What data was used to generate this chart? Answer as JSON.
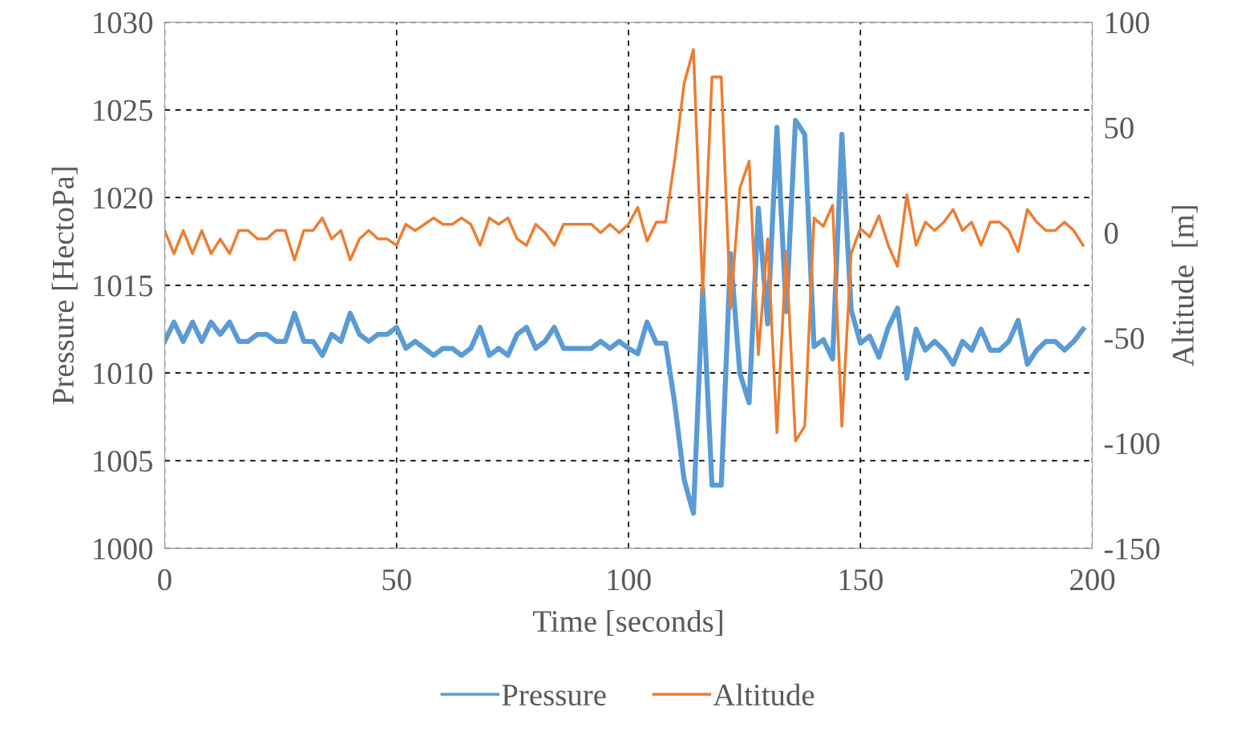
{
  "chart_data": {
    "type": "line",
    "xlabel": "Time [seconds]",
    "ylabel": "Pressure [HectoPa]",
    "y2label": "Altitude  [m]",
    "x": [
      0,
      2,
      4,
      6,
      8,
      10,
      12,
      14,
      16,
      18,
      20,
      22,
      24,
      26,
      28,
      30,
      32,
      34,
      36,
      38,
      40,
      42,
      44,
      46,
      48,
      50,
      52,
      54,
      56,
      58,
      60,
      62,
      64,
      66,
      68,
      70,
      72,
      74,
      76,
      78,
      80,
      82,
      84,
      86,
      88,
      90,
      92,
      94,
      96,
      98,
      100,
      102,
      104,
      106,
      108,
      110,
      112,
      114,
      116,
      118,
      120,
      122,
      124,
      126,
      128,
      130,
      132,
      134,
      136,
      138,
      140,
      142,
      144,
      146,
      148,
      150,
      152,
      154,
      156,
      158,
      160,
      162,
      164,
      166,
      168,
      170,
      172,
      174,
      176,
      178,
      180,
      182,
      184,
      186,
      188,
      190,
      192,
      194,
      196,
      198
    ],
    "xlim": [
      0,
      200
    ],
    "xticks": [
      0,
      50,
      100,
      150,
      200
    ],
    "ylim": [
      1000,
      1030
    ],
    "yticks": [
      1000,
      1005,
      1010,
      1015,
      1020,
      1025,
      1030
    ],
    "y2lim": [
      -150,
      100
    ],
    "y2ticks": [
      -150,
      -100,
      -50,
      0,
      50,
      100
    ],
    "grid": true,
    "legend": "bottom",
    "marker": "none",
    "line_style": "solid",
    "series": [
      {
        "name": "Pressure",
        "color": "#5b9bd5",
        "values": [
          1011.8,
          1012.9,
          1011.8,
          1012.9,
          1011.8,
          1012.9,
          1012.2,
          1012.9,
          1011.8,
          1011.8,
          1012.2,
          1012.2,
          1011.8,
          1011.8,
          1013.4,
          1011.8,
          1011.8,
          1011.0,
          1012.2,
          1011.8,
          1013.4,
          1012.2,
          1011.8,
          1012.2,
          1012.2,
          1012.6,
          1011.4,
          1011.8,
          1011.4,
          1011.0,
          1011.4,
          1011.4,
          1011.0,
          1011.4,
          1012.6,
          1011.0,
          1011.4,
          1011.0,
          1012.2,
          1012.6,
          1011.4,
          1011.8,
          1012.6,
          1011.4,
          1011.4,
          1011.4,
          1011.4,
          1011.8,
          1011.4,
          1011.8,
          1011.4,
          1011.1,
          1012.9,
          1011.7,
          1011.7,
          1008.2,
          1003.9,
          1002.0,
          1014.8,
          1003.6,
          1003.6,
          1016.8,
          1010.0,
          1008.3,
          1019.4,
          1012.8,
          1024.0,
          1013.5,
          1024.4,
          1023.6,
          1011.5,
          1011.9,
          1010.8,
          1023.6,
          1013.6,
          1011.7,
          1012.1,
          1010.9,
          1012.6,
          1013.7,
          1009.7,
          1012.5,
          1011.3,
          1011.8,
          1011.3,
          1010.5,
          1011.8,
          1011.3,
          1012.5,
          1011.3,
          1011.3,
          1011.8,
          1013.0,
          1010.5,
          1011.3,
          1011.8,
          1011.8,
          1011.3,
          1011.8,
          1012.5
        ]
      },
      {
        "name": "Altitude",
        "color": "#ed7d31",
        "axis": "y2",
        "values": [
          1,
          -10,
          1,
          -10,
          1,
          -10,
          -3,
          -10,
          1,
          1,
          -3,
          -3,
          1,
          1,
          -13,
          1,
          1,
          7,
          -3,
          1,
          -13,
          -3,
          1,
          -3,
          -3,
          -6,
          4,
          1,
          4,
          7,
          4,
          4,
          7,
          4,
          -6,
          7,
          4,
          7,
          -3,
          -6,
          4,
          0,
          -6,
          4,
          4,
          4,
          4,
          0,
          4,
          0,
          4,
          12,
          -4,
          5,
          5,
          35,
          71,
          87,
          -29,
          74,
          74,
          -36,
          21,
          34,
          -58,
          -3,
          -95,
          -9,
          -99,
          -92,
          7,
          3,
          13,
          -92,
          -10,
          2,
          -2,
          8,
          -6,
          -16,
          18,
          -6,
          5,
          1,
          5,
          11,
          1,
          5,
          -6,
          5,
          5,
          1,
          -9,
          11,
          5,
          1,
          1,
          5,
          1,
          -6
        ]
      }
    ]
  }
}
